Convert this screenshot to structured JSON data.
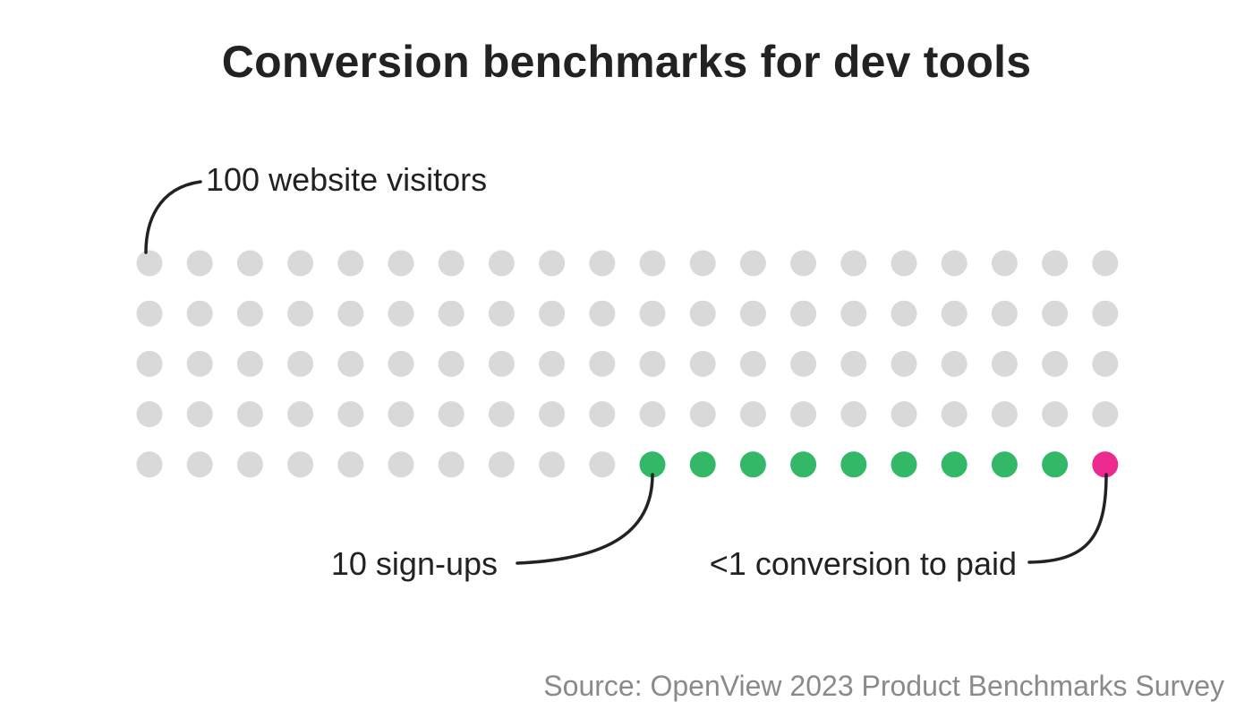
{
  "title": "Conversion benchmarks for dev tools",
  "source": "Source: OpenView 2023 Product Benchmarks Survey",
  "colors": {
    "visitor": "#d9d9d9",
    "signup": "#33b868",
    "paid": "#ec2a8f",
    "text": "#222222",
    "source": "#8a8a8a"
  },
  "chart_data": {
    "type": "waffle",
    "total": 100,
    "rows": 5,
    "columns": 20,
    "categories": [
      {
        "name": "website visitors",
        "count": 90,
        "color": "#d9d9d9"
      },
      {
        "name": "sign-ups",
        "count": 9,
        "color": "#33b868"
      },
      {
        "name": "conversion to paid",
        "count": 1,
        "color": "#ec2a8f"
      }
    ],
    "annotations": {
      "visitors": "100 website visitors",
      "signups": "10 sign-ups",
      "paid": "<1 conversion to paid"
    }
  }
}
